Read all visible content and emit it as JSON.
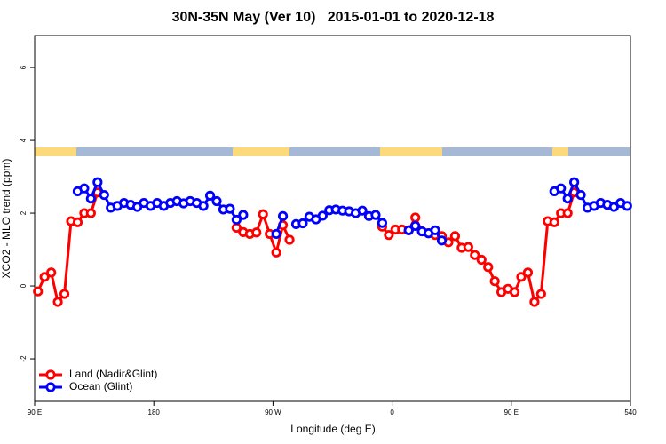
{
  "chart_data": {
    "type": "line",
    "title": "30N-35N May (Ver 10)   2015-01-01 to 2020-12-18",
    "x_label": "Longitude (deg E)",
    "y_label": "XCO2 - MLO trend (ppm)",
    "x": [
      92.5,
      97.5,
      102.5,
      107.5,
      112.5,
      117.5,
      122.5,
      127.5,
      132.5,
      137.5,
      142.5,
      147.5,
      152.5,
      157.5,
      162.5,
      167.5,
      172.5,
      177.5,
      182.5,
      187.5,
      192.5,
      197.5,
      202.5,
      207.5,
      212.5,
      217.5,
      222.5,
      227.5,
      232.5,
      237.5,
      242.5,
      247.5,
      252.5,
      257.5,
      262.5,
      267.5,
      272.5,
      277.5,
      282.5,
      287.5,
      292.5,
      297.5,
      302.5,
      307.5,
      312.5,
      317.5,
      322.5,
      327.5,
      332.5,
      337.5,
      342.5,
      347.5,
      352.5,
      357.5,
      362.5,
      367.5,
      372.5,
      377.5,
      382.5,
      387.5,
      392.5,
      397.5,
      402.5,
      407.5,
      412.5,
      417.5,
      422.5,
      427.5,
      432.5,
      437.5,
      442.5,
      447.5,
      452.5,
      457.5,
      462.5,
      467.5,
      472.5,
      477.5,
      482.5,
      487.5,
      492.5,
      497.5,
      502.5,
      507.5,
      512.5,
      517.5,
      522.5,
      527.5,
      532.5,
      537.5
    ],
    "series": [
      {
        "name": "Land (Nadir&Glint)",
        "color": "#ff0000",
        "values": [
          -0.15,
          0.25,
          0.37,
          -0.44,
          -0.22,
          1.78,
          1.75,
          2.0,
          2.0,
          2.57,
          null,
          null,
          null,
          null,
          null,
          null,
          null,
          null,
          null,
          null,
          null,
          null,
          null,
          null,
          null,
          null,
          null,
          null,
          null,
          null,
          1.6,
          1.48,
          1.43,
          1.47,
          1.97,
          1.43,
          0.92,
          1.67,
          1.27,
          null,
          null,
          null,
          null,
          null,
          null,
          null,
          null,
          null,
          null,
          null,
          null,
          null,
          1.63,
          1.4,
          1.55,
          1.55,
          1.53,
          1.88,
          1.5,
          1.45,
          1.4,
          1.37,
          1.2,
          1.37,
          1.05,
          1.07,
          0.85,
          0.72,
          0.52,
          0.13,
          -0.17,
          -0.08,
          -0.17,
          0.25,
          0.37,
          -0.44,
          -0.22,
          1.78,
          1.75,
          2.0,
          2.0,
          2.57,
          null,
          null,
          null,
          null,
          null,
          null,
          null,
          null
        ]
      },
      {
        "name": "Ocean (Glint)",
        "color": "#0000ff",
        "values": [
          null,
          null,
          null,
          null,
          null,
          null,
          2.6,
          2.68,
          2.4,
          2.85,
          2.5,
          2.15,
          2.2,
          2.28,
          2.23,
          2.17,
          2.28,
          2.2,
          2.28,
          2.2,
          2.28,
          2.33,
          2.27,
          2.33,
          2.28,
          2.2,
          2.48,
          2.33,
          2.1,
          2.12,
          1.82,
          1.95,
          null,
          null,
          null,
          null,
          1.43,
          1.92,
          null,
          1.7,
          1.72,
          1.9,
          1.83,
          1.93,
          2.08,
          2.1,
          2.07,
          2.05,
          2.0,
          2.07,
          1.92,
          1.95,
          1.73,
          null,
          null,
          null,
          1.53,
          1.65,
          1.5,
          1.45,
          1.53,
          1.25,
          null,
          null,
          null,
          null,
          null,
          null,
          null,
          null,
          null,
          null,
          null,
          null,
          null,
          null,
          null,
          null,
          2.6,
          2.68,
          2.4,
          2.85,
          2.5,
          2.15,
          2.2,
          2.28,
          2.23,
          2.17,
          2.28,
          2.2
        ]
      }
    ],
    "xlim": [
      90,
      540
    ],
    "xticks": [
      {
        "value": 90,
        "label": "90 E"
      },
      180,
      {
        "value": 270,
        "label": "90 W"
      },
      {
        "value": 360,
        "label": "0"
      },
      {
        "value": 450,
        "label": "90 E"
      },
      540
    ],
    "ylim": [
      -3.17,
      6.88
    ],
    "yticks": [
      -2,
      0,
      2,
      4,
      6
    ],
    "legend": "lower left",
    "grid": false
  }
}
